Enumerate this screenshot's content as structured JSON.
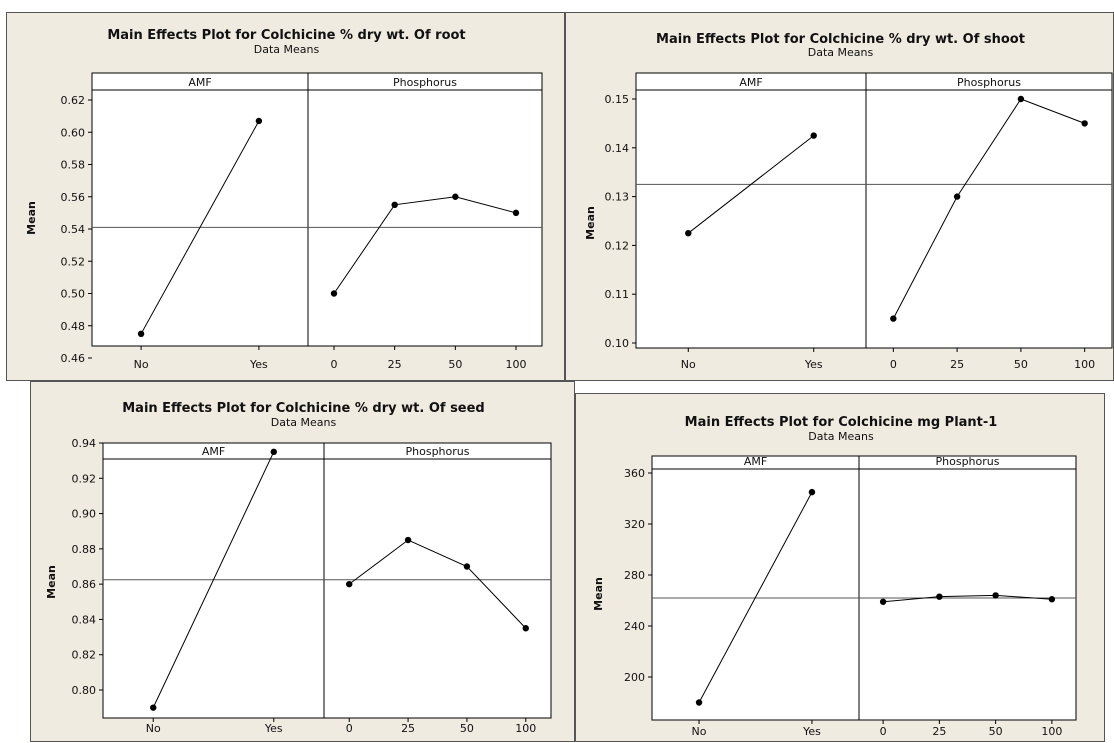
{
  "chart_data": [
    {
      "type": "line",
      "title": "Main Effects Plot for Colchicine % dry wt. Of root",
      "subtitle": "Data Means",
      "ylabel": "Mean",
      "ylim": [
        0.46,
        0.62
      ],
      "yticks": [
        "0.46",
        "0.48",
        "0.50",
        "0.52",
        "0.54",
        "0.56",
        "0.58",
        "0.60",
        "0.62"
      ],
      "reference_line": 0.541,
      "factors": [
        {
          "name": "AMF",
          "categories": [
            "No",
            "Yes"
          ],
          "values": [
            0.475,
            0.607
          ]
        },
        {
          "name": "Phosphorus",
          "categories": [
            "0",
            "25",
            "50",
            "100"
          ],
          "values": [
            0.5,
            0.555,
            0.56,
            0.55
          ]
        }
      ]
    },
    {
      "type": "line",
      "title": "Main Effects Plot for Colchicine % dry wt. Of shoot",
      "subtitle": "Data Means",
      "ylabel": "Mean",
      "ylim": [
        0.1,
        0.15
      ],
      "yticks": [
        "0.10",
        "0.11",
        "0.12",
        "0.13",
        "0.14",
        "0.15"
      ],
      "reference_line": 0.1325,
      "factors": [
        {
          "name": "AMF",
          "categories": [
            "No",
            "Yes"
          ],
          "values": [
            0.1225,
            0.1425
          ]
        },
        {
          "name": "Phosphorus",
          "categories": [
            "0",
            "25",
            "50",
            "100"
          ],
          "values": [
            0.105,
            0.13,
            0.15,
            0.145
          ]
        }
      ]
    },
    {
      "type": "line",
      "title": "Main Effects Plot for Colchicine % dry wt. Of seed",
      "subtitle": "Data Means",
      "ylabel": "Mean",
      "ylim": [
        0.8,
        0.94
      ],
      "yticks": [
        "0.80",
        "0.82",
        "0.84",
        "0.86",
        "0.88",
        "0.90",
        "0.92",
        "0.94"
      ],
      "reference_line": 0.8625,
      "factors": [
        {
          "name": "AMF",
          "categories": [
            "No",
            "Yes"
          ],
          "values": [
            0.79,
            0.935
          ]
        },
        {
          "name": "Phosphorus",
          "categories": [
            "0",
            "25",
            "50",
            "100"
          ],
          "values": [
            0.86,
            0.885,
            0.87,
            0.835
          ]
        }
      ]
    },
    {
      "type": "line",
      "title": "Main Effects Plot for Colchicine mg Plant-1",
      "subtitle": "Data Means",
      "ylabel": "Mean",
      "ylim": [
        200,
        360
      ],
      "yticks": [
        "200",
        "240",
        "280",
        "320",
        "360"
      ],
      "reference_line": 262,
      "factors": [
        {
          "name": "AMF",
          "categories": [
            "No",
            "Yes"
          ],
          "values": [
            180,
            345
          ]
        },
        {
          "name": "Phosphorus",
          "categories": [
            "0",
            "25",
            "50",
            "100"
          ],
          "values": [
            259,
            263,
            264,
            261
          ]
        }
      ]
    }
  ]
}
